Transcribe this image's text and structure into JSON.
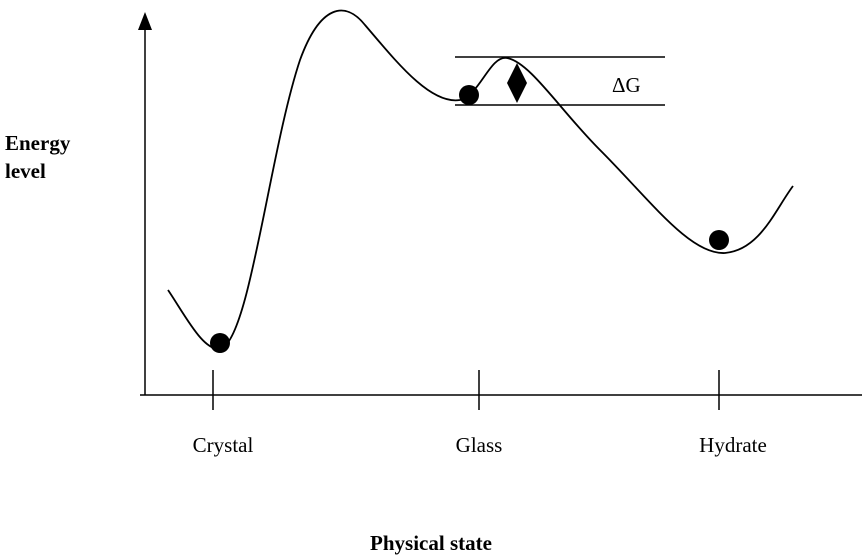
{
  "y_axis_label": [
    "Energy",
    "level"
  ],
  "x_axis_label": "Physical state",
  "states": [
    "Crystal",
    "Glass",
    "Hydrate"
  ],
  "annotation": "ΔG"
}
